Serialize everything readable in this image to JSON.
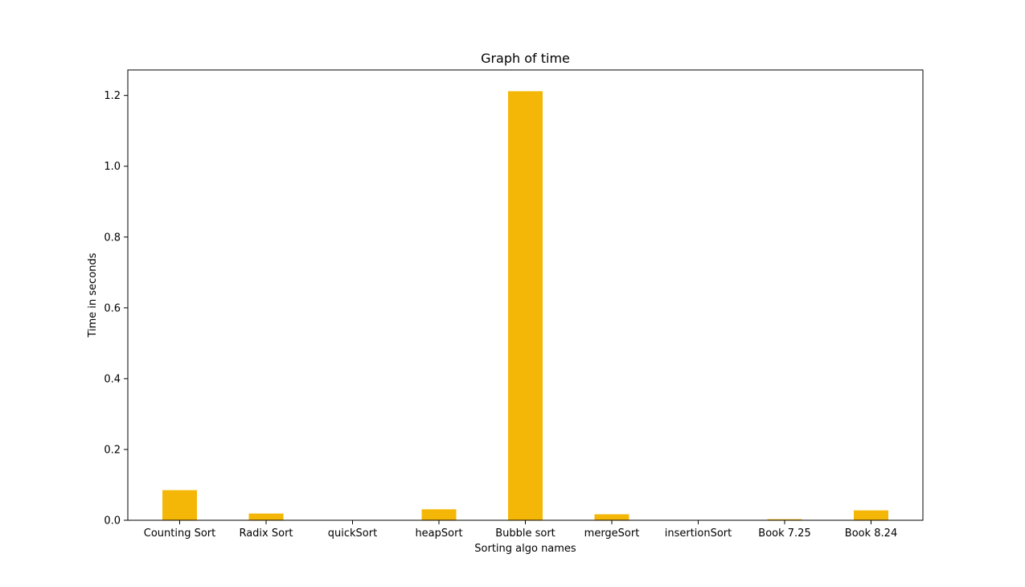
{
  "chart_data": {
    "type": "bar",
    "title": "Graph of time",
    "xlabel": "Sorting algo names",
    "ylabel": "Time in seconds",
    "categories": [
      "Counting Sort",
      "Radix Sort",
      "quickSort",
      "heapSort",
      "Bubble sort",
      "mergeSort",
      "insertionSort",
      "Book 7.25",
      "Book 8.24"
    ],
    "values": [
      0.085,
      0.019,
      0.0005,
      0.031,
      1.212,
      0.017,
      0.0005,
      0.003,
      0.028
    ],
    "ylim": [
      0,
      1.272
    ],
    "yticks": [
      0.0,
      0.2,
      0.4,
      0.6,
      0.8,
      1.0,
      1.2
    ],
    "ytick_labels": [
      "0.0",
      "0.2",
      "0.4",
      "0.6",
      "0.8",
      "1.0",
      "1.2"
    ],
    "bar_color": "#f5b707",
    "grid": false,
    "legend": "none"
  }
}
